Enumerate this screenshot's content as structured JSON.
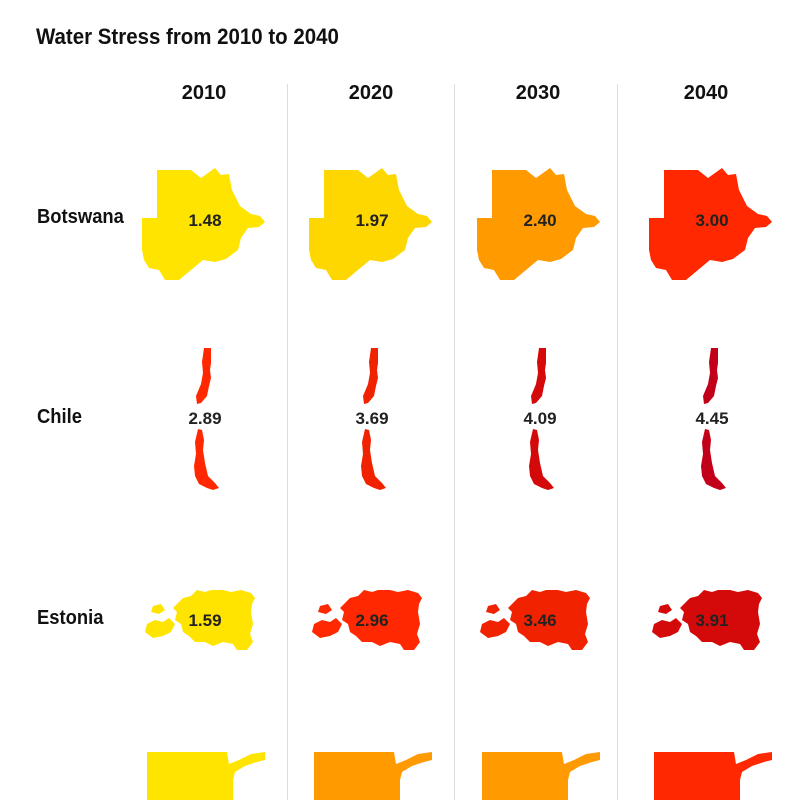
{
  "chart_data": {
    "type": "table",
    "title": "Water Stress from 2010 to 2040",
    "columns": [
      "2010",
      "2020",
      "2030",
      "2040"
    ],
    "rows": [
      {
        "country": "Botswana",
        "shape": "botswana",
        "values": [
          "1.48",
          "1.97",
          "2.40",
          "3.00"
        ]
      },
      {
        "country": "Chile",
        "shape": "chile",
        "values": [
          "2.89",
          "3.69",
          "4.09",
          "4.45"
        ]
      },
      {
        "country": "Estonia",
        "shape": "estonia",
        "values": [
          "1.59",
          "2.96",
          "3.46",
          "3.91"
        ]
      },
      {
        "country": "",
        "shape": "partial",
        "values": [
          null,
          null,
          null,
          null
        ]
      }
    ],
    "color_scale": [
      {
        "max": 1.8,
        "color": "#ffe400"
      },
      {
        "max": 2.0,
        "color": "#ffd700"
      },
      {
        "max": 2.7,
        "color": "#ff9a00"
      },
      {
        "max": 3.3,
        "color": "#ff2800"
      },
      {
        "max": 3.8,
        "color": "#f02200"
      },
      {
        "max": 4.2,
        "color": "#d40a0a"
      },
      {
        "max": 9.9,
        "color": "#c2001a"
      }
    ],
    "partial_row_colors": [
      "#ffe400",
      "#ff9a00",
      "#ff9a00",
      "#ff2800"
    ]
  }
}
